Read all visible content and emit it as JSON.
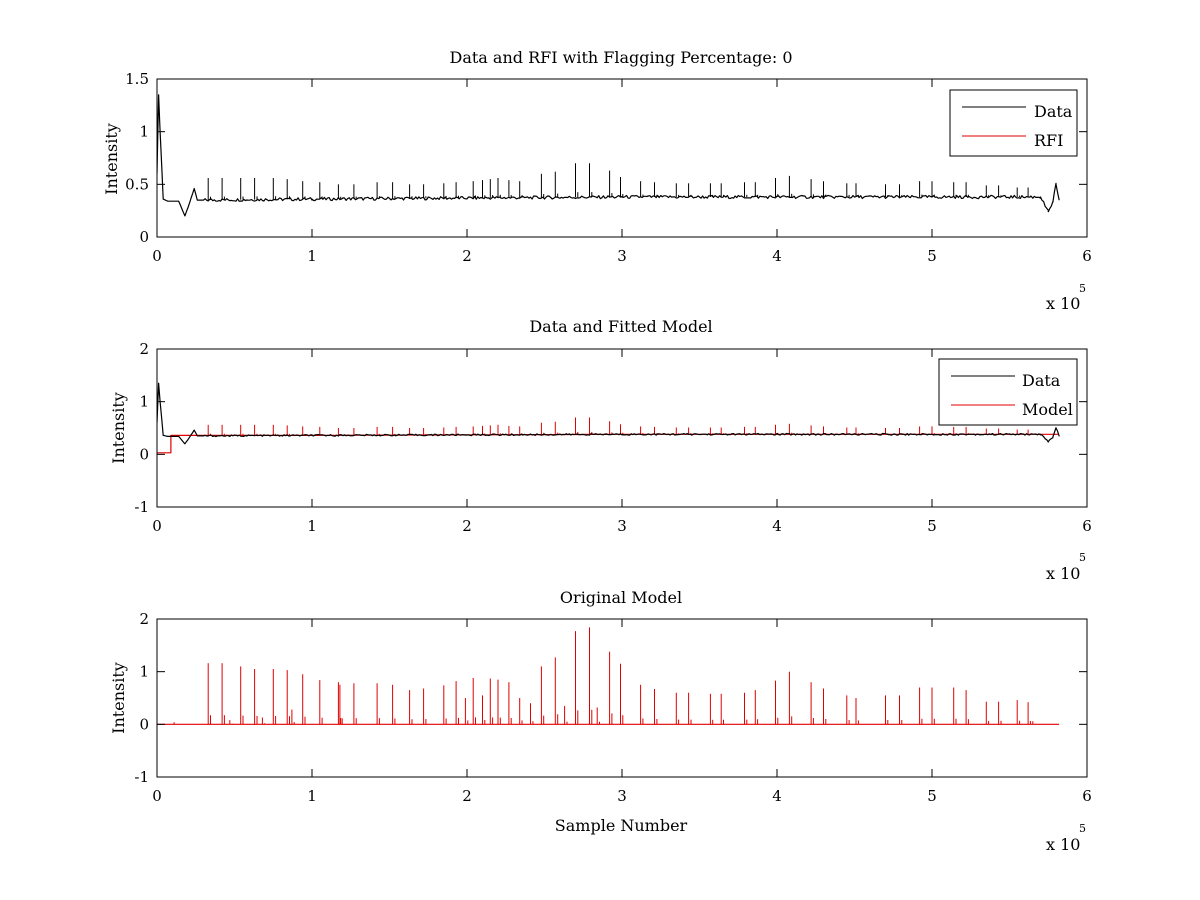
{
  "figure": {
    "background": "#ffffff",
    "data_color": "#000000",
    "model_color": "#e00000"
  },
  "chart_data": [
    {
      "type": "line",
      "title": "Data and RFI with Flagging Percentage: 0",
      "xlabel": "",
      "ylabel": "Intensity",
      "xlim": [
        0,
        6
      ],
      "ylim": [
        0,
        1.5
      ],
      "xticks": [
        "0",
        "1",
        "2",
        "3",
        "4",
        "5",
        "6"
      ],
      "yticks": [
        "0",
        "0.5",
        "1",
        "1.5"
      ],
      "x_exponent": "x 10",
      "x_exponent_power": "5",
      "legend_position": "top-right",
      "grid": false,
      "series": [
        {
          "name": "Data",
          "color": "#000000",
          "baseline": [
            [
              0,
              0.6
            ],
            [
              0.01,
              1.35
            ],
            [
              0.02,
              1.0
            ],
            [
              0.04,
              0.36
            ],
            [
              0.07,
              0.34
            ],
            [
              0.14,
              0.34
            ],
            [
              0.18,
              0.2
            ],
            [
              0.2,
              0.28
            ],
            [
              0.24,
              0.46
            ],
            [
              0.26,
              0.35
            ],
            [
              1,
              0.36
            ],
            [
              3,
              0.38
            ],
            [
              5,
              0.38
            ],
            [
              5.7,
              0.38
            ],
            [
              5.75,
              0.24
            ],
            [
              5.78,
              0.33
            ],
            [
              5.8,
              0.5
            ],
            [
              5.82,
              0.36
            ]
          ],
          "spikes": [
            [
              0.33,
              0.56
            ],
            [
              0.42,
              0.56
            ],
            [
              0.54,
              0.56
            ],
            [
              0.63,
              0.56
            ],
            [
              0.75,
              0.56
            ],
            [
              0.84,
              0.55
            ],
            [
              0.94,
              0.53
            ],
            [
              1.05,
              0.52
            ],
            [
              1.17,
              0.5
            ],
            [
              1.27,
              0.5
            ],
            [
              1.42,
              0.52
            ],
            [
              1.52,
              0.52
            ],
            [
              1.63,
              0.5
            ],
            [
              1.72,
              0.5
            ],
            [
              1.85,
              0.51
            ],
            [
              1.93,
              0.52
            ],
            [
              2.04,
              0.53
            ],
            [
              2.1,
              0.54
            ],
            [
              2.15,
              0.55
            ],
            [
              2.2,
              0.56
            ],
            [
              2.27,
              0.54
            ],
            [
              2.34,
              0.53
            ],
            [
              2.48,
              0.6
            ],
            [
              2.57,
              0.62
            ],
            [
              2.7,
              0.7
            ],
            [
              2.79,
              0.7
            ],
            [
              2.92,
              0.63
            ],
            [
              2.99,
              0.57
            ],
            [
              3.12,
              0.53
            ],
            [
              3.21,
              0.52
            ],
            [
              3.35,
              0.51
            ],
            [
              3.43,
              0.51
            ],
            [
              3.57,
              0.51
            ],
            [
              3.64,
              0.51
            ],
            [
              3.79,
              0.52
            ],
            [
              3.86,
              0.52
            ],
            [
              3.99,
              0.56
            ],
            [
              4.08,
              0.58
            ],
            [
              4.22,
              0.55
            ],
            [
              4.3,
              0.53
            ],
            [
              4.45,
              0.51
            ],
            [
              4.51,
              0.51
            ],
            [
              4.7,
              0.5
            ],
            [
              4.79,
              0.5
            ],
            [
              4.92,
              0.53
            ],
            [
              5.0,
              0.53
            ],
            [
              5.14,
              0.52
            ],
            [
              5.22,
              0.52
            ],
            [
              5.35,
              0.49
            ],
            [
              5.43,
              0.49
            ],
            [
              5.55,
              0.47
            ],
            [
              5.62,
              0.47
            ]
          ]
        },
        {
          "name": "RFI",
          "color": "#e00000",
          "points": []
        }
      ]
    },
    {
      "type": "line",
      "title": "Data and Fitted Model",
      "xlabel": "",
      "ylabel": "Intensity",
      "xlim": [
        0,
        6
      ],
      "ylim": [
        -1,
        2
      ],
      "xticks": [
        "0",
        "1",
        "2",
        "3",
        "4",
        "5",
        "6"
      ],
      "yticks": [
        "-1",
        "0",
        "1",
        "2"
      ],
      "x_exponent": "x 10",
      "x_exponent_power": "5",
      "legend_position": "top-right",
      "grid": false,
      "series": [
        {
          "name": "Data",
          "color": "#000000",
          "baseline": [
            [
              0,
              0.6
            ],
            [
              0.01,
              1.35
            ],
            [
              0.02,
              1.0
            ],
            [
              0.04,
              0.36
            ],
            [
              0.07,
              0.34
            ],
            [
              0.14,
              0.34
            ],
            [
              0.18,
              0.2
            ],
            [
              0.2,
              0.28
            ],
            [
              0.24,
              0.46
            ],
            [
              0.26,
              0.35
            ],
            [
              1,
              0.36
            ],
            [
              3,
              0.38
            ],
            [
              5,
              0.38
            ],
            [
              5.7,
              0.38
            ],
            [
              5.75,
              0.24
            ],
            [
              5.78,
              0.33
            ],
            [
              5.8,
              0.5
            ],
            [
              5.82,
              0.36
            ]
          ]
        },
        {
          "name": "Model",
          "color": "#e00000",
          "baseline": [
            [
              0,
              0.03
            ],
            [
              0.09,
              0.03
            ],
            [
              0.09,
              0.36
            ],
            [
              1,
              0.36
            ],
            [
              3,
              0.38
            ],
            [
              5,
              0.38
            ],
            [
              5.82,
              0.38
            ]
          ],
          "spikes": [
            [
              0.33,
              0.56
            ],
            [
              0.42,
              0.56
            ],
            [
              0.54,
              0.56
            ],
            [
              0.63,
              0.56
            ],
            [
              0.75,
              0.56
            ],
            [
              0.84,
              0.55
            ],
            [
              0.94,
              0.53
            ],
            [
              1.05,
              0.52
            ],
            [
              1.17,
              0.5
            ],
            [
              1.27,
              0.5
            ],
            [
              1.42,
              0.52
            ],
            [
              1.52,
              0.52
            ],
            [
              1.63,
              0.5
            ],
            [
              1.72,
              0.5
            ],
            [
              1.85,
              0.51
            ],
            [
              1.93,
              0.52
            ],
            [
              2.04,
              0.53
            ],
            [
              2.1,
              0.54
            ],
            [
              2.15,
              0.55
            ],
            [
              2.2,
              0.56
            ],
            [
              2.27,
              0.54
            ],
            [
              2.34,
              0.53
            ],
            [
              2.48,
              0.6
            ],
            [
              2.57,
              0.62
            ],
            [
              2.7,
              0.7
            ],
            [
              2.79,
              0.7
            ],
            [
              2.92,
              0.63
            ],
            [
              2.99,
              0.57
            ],
            [
              3.12,
              0.53
            ],
            [
              3.21,
              0.52
            ],
            [
              3.35,
              0.51
            ],
            [
              3.43,
              0.51
            ],
            [
              3.57,
              0.51
            ],
            [
              3.64,
              0.51
            ],
            [
              3.79,
              0.52
            ],
            [
              3.86,
              0.52
            ],
            [
              3.99,
              0.56
            ],
            [
              4.08,
              0.58
            ],
            [
              4.22,
              0.55
            ],
            [
              4.3,
              0.53
            ],
            [
              4.45,
              0.51
            ],
            [
              4.51,
              0.51
            ],
            [
              4.7,
              0.5
            ],
            [
              4.79,
              0.5
            ],
            [
              4.92,
              0.53
            ],
            [
              5.0,
              0.53
            ],
            [
              5.14,
              0.52
            ],
            [
              5.22,
              0.52
            ],
            [
              5.35,
              0.49
            ],
            [
              5.43,
              0.49
            ],
            [
              5.55,
              0.47
            ],
            [
              5.62,
              0.47
            ]
          ]
        }
      ]
    },
    {
      "type": "line",
      "title": "Original Model",
      "xlabel": "Sample Number",
      "ylabel": "Intensity",
      "xlim": [
        0,
        6
      ],
      "ylim": [
        -1,
        2
      ],
      "xticks": [
        "0",
        "1",
        "2",
        "3",
        "4",
        "5",
        "6"
      ],
      "yticks": [
        "-1",
        "0",
        "1",
        "2"
      ],
      "x_exponent": "x 10",
      "x_exponent_power": "5",
      "legend_position": "none",
      "grid": false,
      "series": [
        {
          "name": "",
          "color": "#e00000",
          "baseline": [
            [
              0,
              0
            ],
            [
              5.82,
              0
            ]
          ],
          "spikes": [
            [
              0.11,
              0.04
            ],
            [
              0.33,
              1.16
            ],
            [
              0.42,
              1.16
            ],
            [
              0.47,
              0.08
            ],
            [
              0.54,
              1.1
            ],
            [
              0.63,
              1.05
            ],
            [
              0.68,
              0.13
            ],
            [
              0.75,
              1.05
            ],
            [
              0.84,
              1.03
            ],
            [
              0.87,
              0.28
            ],
            [
              0.94,
              0.95
            ],
            [
              1.05,
              0.84
            ],
            [
              1.17,
              0.8
            ],
            [
              1.18,
              0.75
            ],
            [
              1.27,
              0.78
            ],
            [
              1.42,
              0.78
            ],
            [
              1.52,
              0.75
            ],
            [
              1.63,
              0.65
            ],
            [
              1.72,
              0.68
            ],
            [
              1.85,
              0.74
            ],
            [
              1.93,
              0.82
            ],
            [
              1.99,
              0.5
            ],
            [
              2.04,
              0.88
            ],
            [
              2.1,
              0.55
            ],
            [
              2.15,
              0.87
            ],
            [
              2.2,
              0.85
            ],
            [
              2.27,
              0.8
            ],
            [
              2.34,
              0.5
            ],
            [
              2.41,
              0.4
            ],
            [
              2.48,
              1.1
            ],
            [
              2.57,
              1.27
            ],
            [
              2.63,
              0.35
            ],
            [
              2.7,
              1.77
            ],
            [
              2.79,
              1.84
            ],
            [
              2.84,
              0.32
            ],
            [
              2.92,
              1.38
            ],
            [
              2.99,
              1.15
            ],
            [
              3.12,
              0.75
            ],
            [
              3.21,
              0.67
            ],
            [
              3.35,
              0.6
            ],
            [
              3.43,
              0.6
            ],
            [
              3.57,
              0.58
            ],
            [
              3.64,
              0.58
            ],
            [
              3.79,
              0.6
            ],
            [
              3.86,
              0.65
            ],
            [
              3.99,
              0.83
            ],
            [
              4.08,
              1.0
            ],
            [
              4.22,
              0.8
            ],
            [
              4.3,
              0.68
            ],
            [
              4.45,
              0.55
            ],
            [
              4.51,
              0.5
            ],
            [
              4.7,
              0.55
            ],
            [
              4.79,
              0.55
            ],
            [
              4.92,
              0.7
            ],
            [
              5.0,
              0.7
            ],
            [
              5.14,
              0.7
            ],
            [
              5.22,
              0.65
            ],
            [
              5.35,
              0.43
            ],
            [
              5.43,
              0.43
            ],
            [
              5.55,
              0.46
            ],
            [
              5.62,
              0.42
            ],
            [
              5.65,
              0.06
            ]
          ]
        }
      ]
    }
  ]
}
